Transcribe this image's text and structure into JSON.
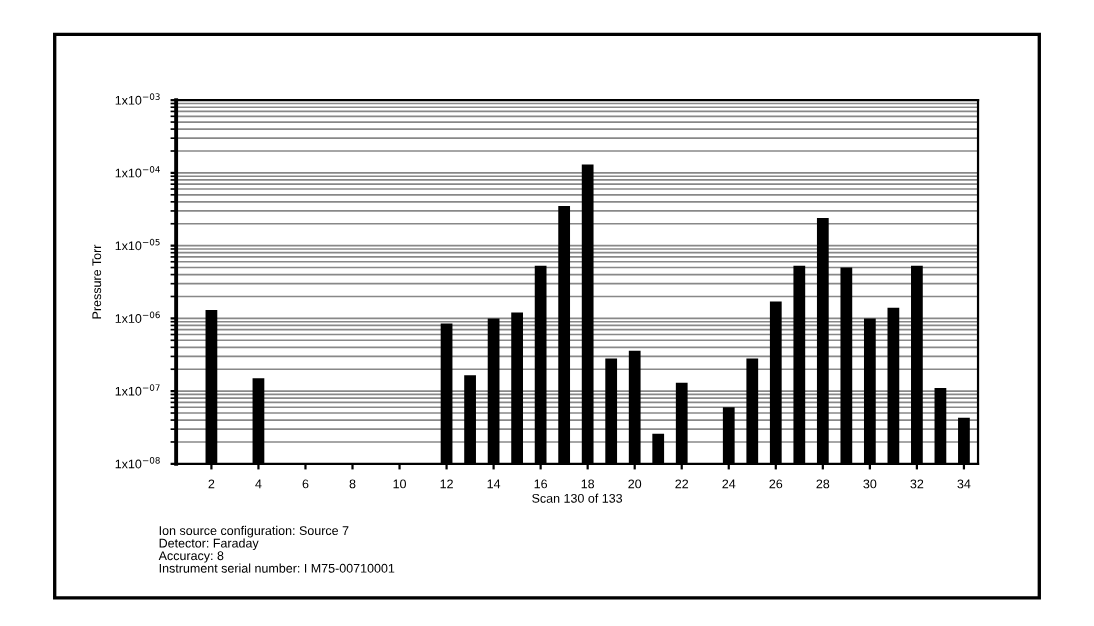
{
  "chart_data": {
    "type": "bar",
    "xlabel": "Scan 130 of 133",
    "ylabel": "Pressure Torr",
    "x": [
      2,
      3,
      4,
      5,
      6,
      7,
      8,
      9,
      10,
      11,
      12,
      13,
      14,
      15,
      16,
      17,
      18,
      19,
      20,
      21,
      22,
      23,
      24,
      25,
      26,
      27,
      28,
      29,
      30,
      31,
      32,
      33,
      34
    ],
    "values": [
      1.3e-06,
      null,
      1.5e-07,
      null,
      null,
      null,
      null,
      null,
      null,
      null,
      8.5e-07,
      1.65e-07,
      1e-06,
      1.2e-06,
      5.3e-06,
      3.5e-05,
      0.00013,
      2.8e-07,
      3.6e-07,
      2.6e-08,
      1.3e-07,
      null,
      6e-08,
      2.8e-07,
      1.7e-06,
      5.3e-06,
      2.4e-05,
      5e-06,
      1e-06,
      1.4e-06,
      5.3e-06,
      1.1e-07,
      4.3e-08
    ],
    "color": "#000000",
    "log": "y",
    "grid": "y",
    "xlim": [
      0.5,
      34.6
    ],
    "xticks": [
      2,
      4,
      6,
      8,
      10,
      12,
      14,
      16,
      18,
      20,
      22,
      24,
      26,
      28,
      30,
      32,
      34
    ],
    "ylim": [
      1e-08,
      0.001
    ],
    "yticks": [
      {
        "value": 1e-08,
        "label": "1x10$^{−08}$"
      },
      {
        "value": 1e-07,
        "label": "1x10$^{−07}$"
      },
      {
        "value": 1e-06,
        "label": "1x10$^{−06}$"
      },
      {
        "value": 1e-05,
        "label": "1x10$^{−05}$"
      },
      {
        "value": 0.0001,
        "label": "1x10$^{−04}$"
      },
      {
        "value": 0.001,
        "label": "1x10$^{−03}$"
      }
    ],
    "annotations": [
      "Ion source configuration: Source 7\nDetector: Faraday\nAccuracy: 8\nInstrument serial number: I M75-00710001"
    ]
  }
}
